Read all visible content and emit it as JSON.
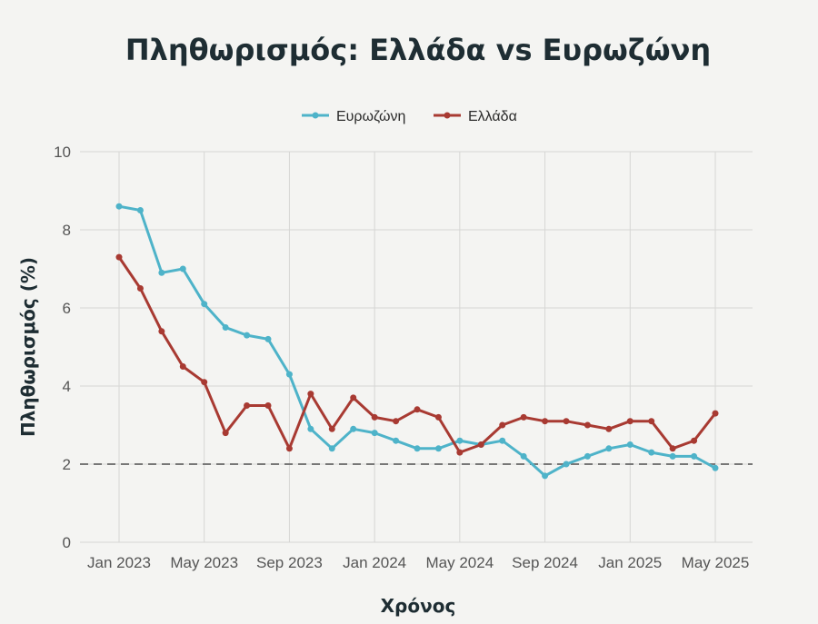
{
  "chart_data": {
    "type": "line",
    "title": "Πληθωρισμός: Ελλάδα vs Ευρωζώνη",
    "xlabel": "Χρόνος",
    "ylabel": "Πληθωρισμός (%)",
    "ylim": [
      0,
      10
    ],
    "yticks": [
      0,
      2,
      4,
      6,
      8,
      10
    ],
    "x": [
      "Jan 2023",
      "Feb 2023",
      "Mar 2023",
      "Apr 2023",
      "May 2023",
      "Jun 2023",
      "Jul 2023",
      "Aug 2023",
      "Sep 2023",
      "Oct 2023",
      "Nov 2023",
      "Dec 2023",
      "Jan 2024",
      "Feb 2024",
      "Mar 2024",
      "Apr 2024",
      "May 2024",
      "Jun 2024",
      "Jul 2024",
      "Aug 2024",
      "Sep 2024",
      "Oct 2024",
      "Nov 2024",
      "Dec 2024",
      "Jan 2025",
      "Feb 2025",
      "Mar 2025",
      "Apr 2025",
      "May 2025"
    ],
    "xticks": [
      "Jan 2023",
      "May 2023",
      "Sep 2023",
      "Jan 2024",
      "May 2024",
      "Sep 2024",
      "Jan 2025",
      "May 2025"
    ],
    "reference_line": 2,
    "grid": true,
    "legend_position": "top-center",
    "series": [
      {
        "name": "Ευρωζώνη",
        "color": "#4eb3c9",
        "values": [
          8.6,
          8.5,
          6.9,
          7.0,
          6.1,
          5.5,
          5.3,
          5.2,
          4.3,
          2.9,
          2.4,
          2.9,
          2.8,
          2.6,
          2.4,
          2.4,
          2.6,
          2.5,
          2.6,
          2.2,
          1.7,
          2.0,
          2.2,
          2.4,
          2.5,
          2.3,
          2.2,
          2.2,
          1.9
        ]
      },
      {
        "name": "Ελλάδα",
        "color": "#a83a32",
        "values": [
          7.3,
          6.5,
          5.4,
          4.5,
          4.1,
          2.8,
          3.5,
          3.5,
          2.4,
          3.8,
          2.9,
          3.7,
          3.2,
          3.1,
          3.4,
          3.2,
          2.3,
          2.5,
          3.0,
          3.2,
          3.1,
          3.1,
          3.0,
          2.9,
          3.1,
          3.1,
          2.4,
          2.6,
          3.3
        ]
      }
    ]
  }
}
